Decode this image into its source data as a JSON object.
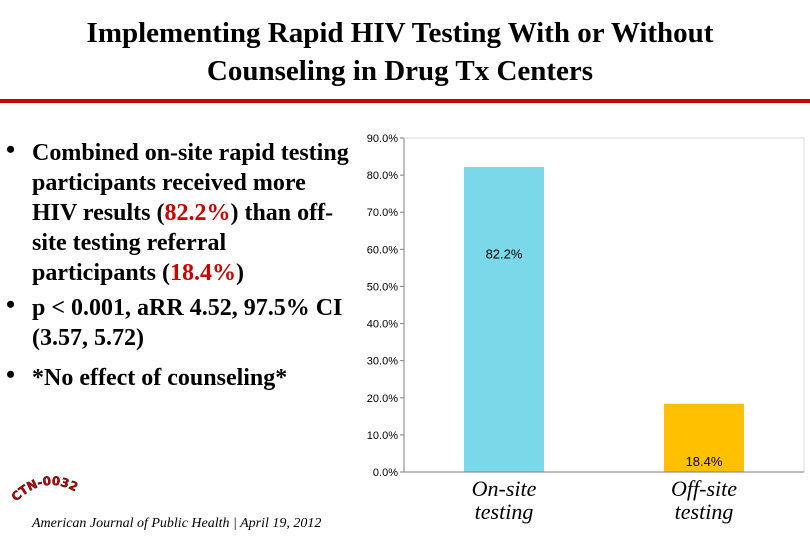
{
  "title_line1": "Implementing Rapid HIV Testing With or Without",
  "title_line2": "Counseling in Drug Tx Centers",
  "accent_color": "#cc0000",
  "bullets": {
    "b1_part1": "Combined on-site rapid testing participants received more HIV results (",
    "b1_val1": "82.2%",
    "b1_part2": ") than off-site testing referral participants (",
    "b1_val2": "18.4%",
    "b1_part3": ")",
    "b2": "p < 0.001, aRR 4.52, 97.5% CI (3.57, 5.72)",
    "b3": "*No effect of counseling*"
  },
  "logo_text": "CTN-0032",
  "citation": "American Journal of Public Health | April 19, 2012",
  "chart_data": {
    "type": "bar",
    "categories": [
      "On-site testing",
      "Off-site testing"
    ],
    "category_lines": [
      [
        "On-site",
        "testing"
      ],
      [
        "Off-site",
        "testing"
      ]
    ],
    "values": [
      82.2,
      18.4
    ],
    "data_labels": [
      "82.2%",
      "18.4%"
    ],
    "bar_colors": [
      "#7ad8e8",
      "#ffc000"
    ],
    "ylim": [
      0,
      90
    ],
    "yticks": [
      0,
      10,
      20,
      30,
      40,
      50,
      60,
      70,
      80,
      90
    ],
    "ytick_labels": [
      "0.0%",
      "10.0%",
      "20.0%",
      "30.0%",
      "40.0%",
      "50.0%",
      "60.0%",
      "70.0%",
      "80.0%",
      "90.0%"
    ],
    "grid": false,
    "legend": "none"
  }
}
